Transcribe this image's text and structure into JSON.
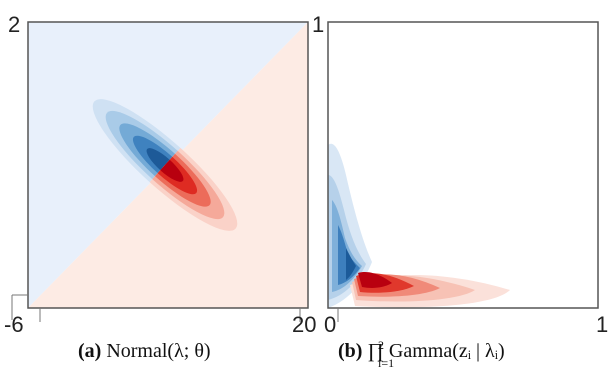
{
  "figure": {
    "panel_a": {
      "y_top": "2",
      "x_left": "-6",
      "x_right": "20",
      "caption_tag": "(a)",
      "caption_text": "Normal(λ; θ)"
    },
    "panel_b": {
      "y_top": "1",
      "x_left": "0",
      "x_right": "1",
      "caption_tag": "(b)",
      "caption_text": "∏ Gamma(zᵢ | λᵢ)",
      "caption_sup": "2",
      "caption_sub": "i=1"
    },
    "colors": {
      "blue_region": "#e8f0fb",
      "red_region": "#fdebe4",
      "blue_strong": "#2166ac",
      "red_strong": "#d6000f"
    }
  }
}
